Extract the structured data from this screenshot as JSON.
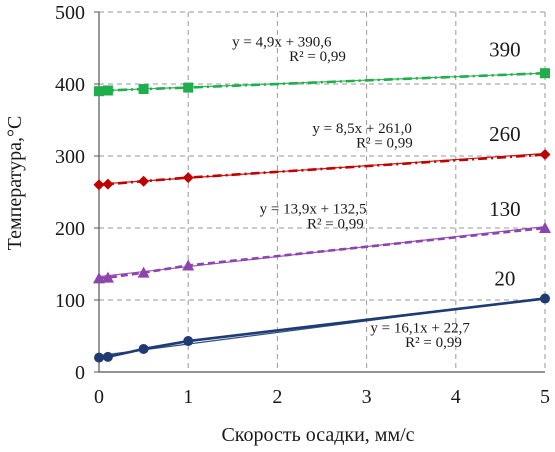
{
  "chart_data": {
    "type": "line",
    "title": "",
    "xlabel": "Скорость осадки, мм/с",
    "ylabel": "Температура,°С",
    "xlim": [
      0,
      5
    ],
    "ylim": [
      0,
      500
    ],
    "x_ticks": [
      "0",
      "1",
      "2",
      "3",
      "4",
      "5"
    ],
    "y_ticks": [
      "0",
      "100",
      "200",
      "300",
      "400",
      "500"
    ],
    "grid": true,
    "grid_style": "dashed",
    "legend": "none",
    "series": [
      {
        "name": "390",
        "color": "#1fae4b",
        "marker": "square",
        "line_style": "dash-dot",
        "x": [
          0,
          0.1,
          0.5,
          1,
          5
        ],
        "y": [
          390,
          391,
          393,
          395,
          415
        ],
        "trend": {
          "slope": 4.9,
          "intercept": 390.6
        },
        "equation": "y = 4,9x + 390,6",
        "r2": "R² = 0,99"
      },
      {
        "name": "260",
        "color": "#c00000",
        "marker": "diamond",
        "line_style": "dash-dot",
        "x": [
          0,
          0.1,
          0.5,
          1,
          5
        ],
        "y": [
          260,
          261,
          265,
          270,
          302
        ],
        "trend": {
          "slope": 8.5,
          "intercept": 261.0
        },
        "equation": "y = 8,5x + 261,0",
        "r2": "R² = 0,99"
      },
      {
        "name": "130",
        "color": "#8e44ad",
        "marker": "triangle",
        "line_style": "dash",
        "x": [
          0,
          0.1,
          0.5,
          1,
          5
        ],
        "y": [
          130,
          131,
          138,
          148,
          200
        ],
        "trend": {
          "slope": 13.9,
          "intercept": 132.5
        },
        "equation": "y = 13,9x + 132,5",
        "r2": "R² = 0,99"
      },
      {
        "name": "20",
        "color": "#1f3b73",
        "marker": "circle",
        "line_style": "solid",
        "x": [
          0,
          0.1,
          0.5,
          1,
          5
        ],
        "y": [
          20,
          21,
          32,
          43,
          102
        ],
        "trend": {
          "slope": 16.1,
          "intercept": 22.7
        },
        "equation": "y = 16,1x + 22,7",
        "r2": "R² = 0,99"
      }
    ]
  }
}
